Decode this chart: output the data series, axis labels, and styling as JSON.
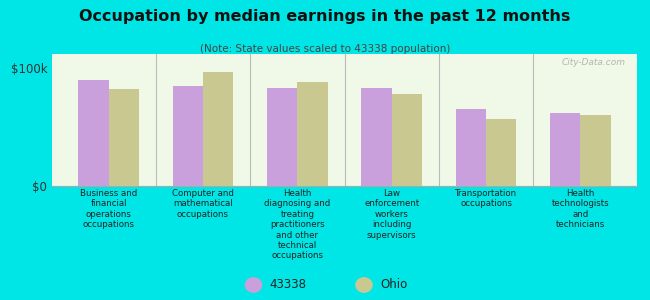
{
  "title": "Occupation by median earnings in the past 12 months",
  "subtitle": "(Note: State values scaled to 43338 population)",
  "categories": [
    "Business and\nfinancial\noperations\noccupations",
    "Computer and\nmathematical\noccupations",
    "Health\ndiagnosing and\ntreating\npractitioners\nand other\ntechnical\noccupations",
    "Law\nenforcement\nworkers\nincluding\nsupervisors",
    "Transportation\noccupations",
    "Health\ntechnologists\nand\ntechnicians"
  ],
  "values_43338": [
    90000,
    85000,
    83000,
    83000,
    65000,
    62000
  ],
  "values_ohio": [
    82000,
    97000,
    88000,
    78000,
    57000,
    60000
  ],
  "color_43338": "#c9a0dc",
  "color_ohio": "#c8c890",
  "background_plot": "#f0f8e8",
  "background_fig": "#00e5e5",
  "ylim": [
    0,
    112000
  ],
  "ytick_labels": [
    "$0",
    "$100k"
  ],
  "legend_label_43338": "43338",
  "legend_label_ohio": "Ohio",
  "watermark": "City-Data.com"
}
